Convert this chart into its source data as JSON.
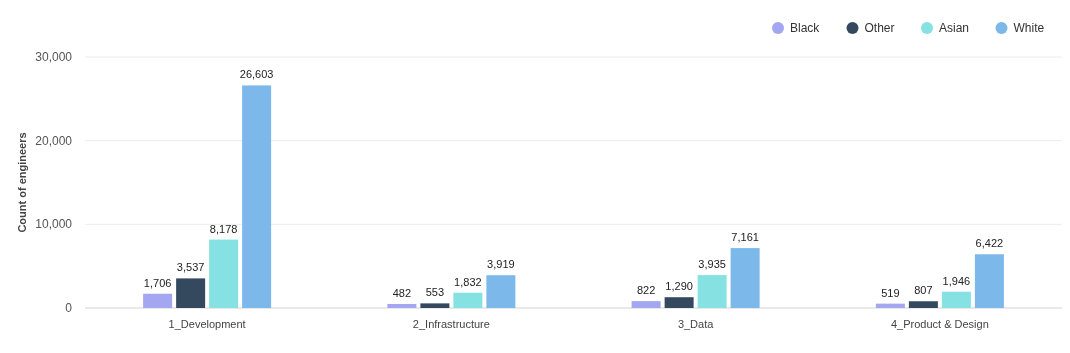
{
  "chart_data": {
    "type": "bar",
    "ylabel": "Count of engineers",
    "categories": [
      "1_Development",
      "2_Infrastructure",
      "3_Data",
      "4_Product & Design"
    ],
    "series": [
      {
        "name": "Black",
        "color": "#a4a6f2",
        "values": [
          1706,
          482,
          822,
          519
        ],
        "value_labels": [
          "1,706",
          "482",
          "822",
          "519"
        ]
      },
      {
        "name": "Other",
        "color": "#35495e",
        "values": [
          3537,
          553,
          1290,
          807
        ],
        "value_labels": [
          "3,537",
          "553",
          "1,290",
          "807"
        ]
      },
      {
        "name": "Asian",
        "color": "#86e2e2",
        "values": [
          8178,
          1832,
          3935,
          1946
        ],
        "value_labels": [
          "8,178",
          "1,832",
          "3,935",
          "1,946"
        ]
      },
      {
        "name": "White",
        "color": "#7db8ea",
        "values": [
          26603,
          3919,
          7161,
          6422
        ],
        "value_labels": [
          "26,603",
          "3,919",
          "7,161",
          "6,422"
        ]
      }
    ],
    "ylim": [
      0,
      30000
    ],
    "yticks": [
      {
        "value": 0,
        "label": "0"
      },
      {
        "value": 10000,
        "label": "10,000"
      },
      {
        "value": 20000,
        "label": "20,000"
      },
      {
        "value": 30000,
        "label": "30,000"
      }
    ],
    "grid": "y",
    "legend": "top right"
  }
}
